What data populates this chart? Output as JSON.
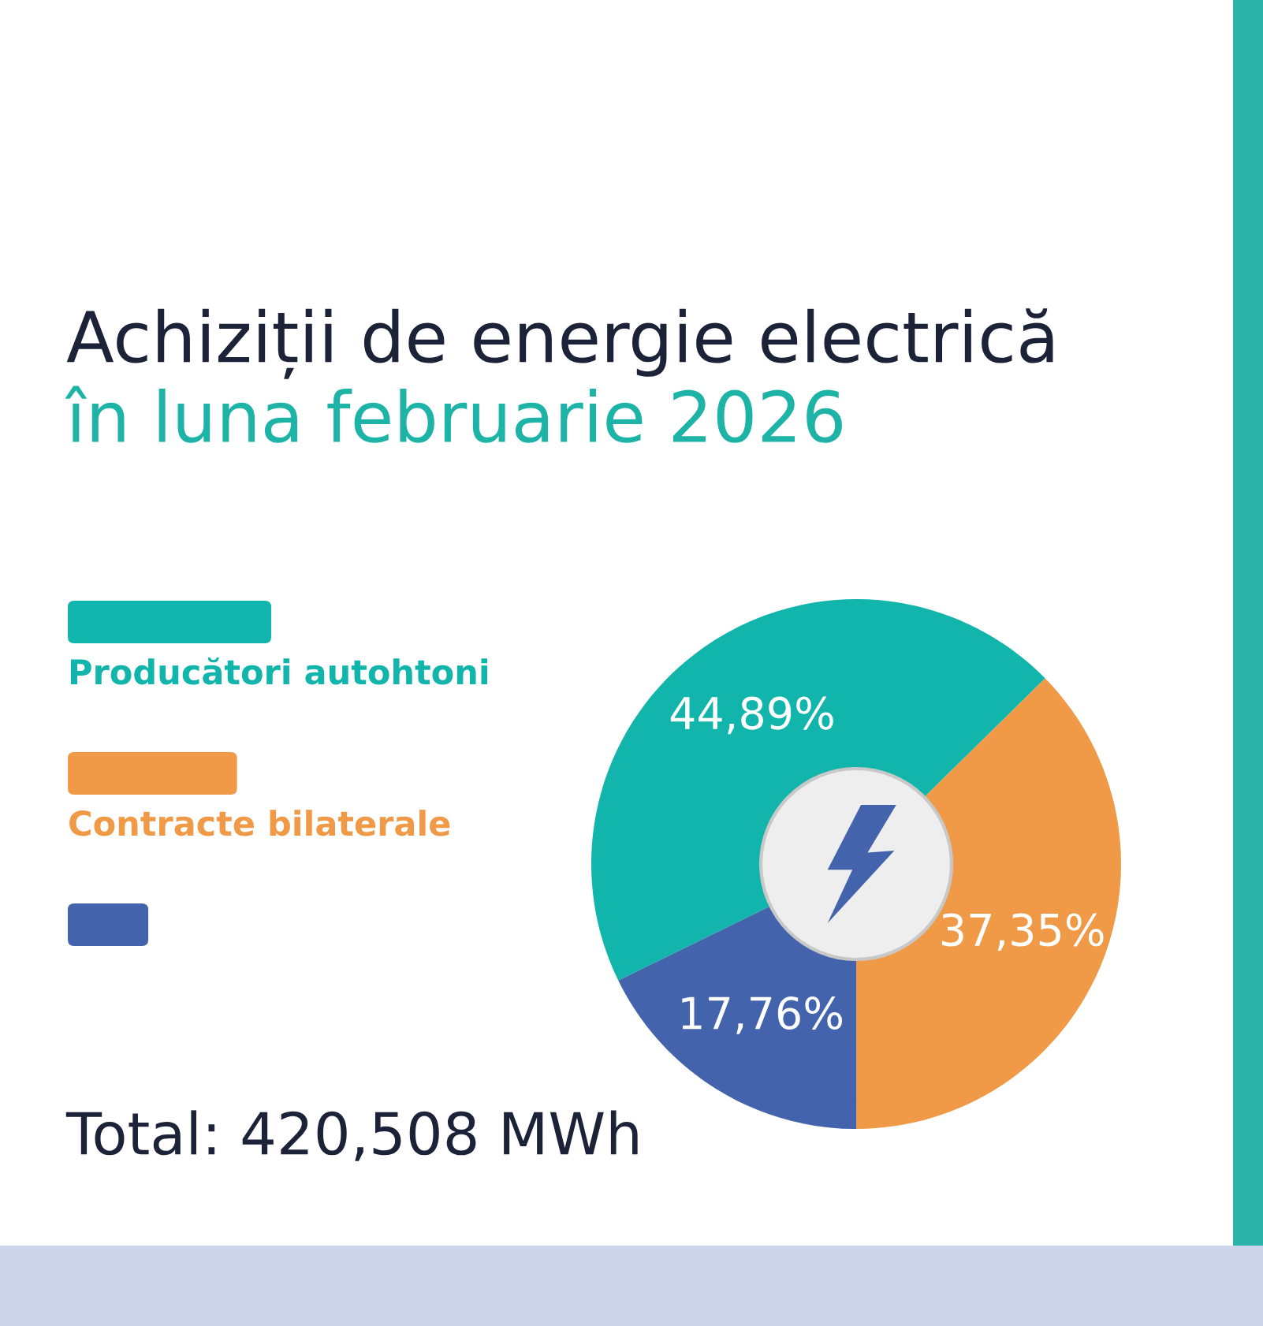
{
  "chart_data": {
    "type": "donut",
    "title": "Achiziții de energie electrică",
    "subtitle": "în luna februarie 2026",
    "categories": [
      "Producători autohtoni",
      "Contracte bilaterale",
      null
    ],
    "values": [
      44.89,
      37.35,
      17.76
    ],
    "colors": [
      "#12b5ab",
      "#f09a48",
      "#4363ad"
    ],
    "value_labels": [
      "44,89%",
      "37,35%",
      "17,76%"
    ],
    "legend": "left",
    "annotations": [
      "Total: 420,508 MWh"
    ]
  }
}
